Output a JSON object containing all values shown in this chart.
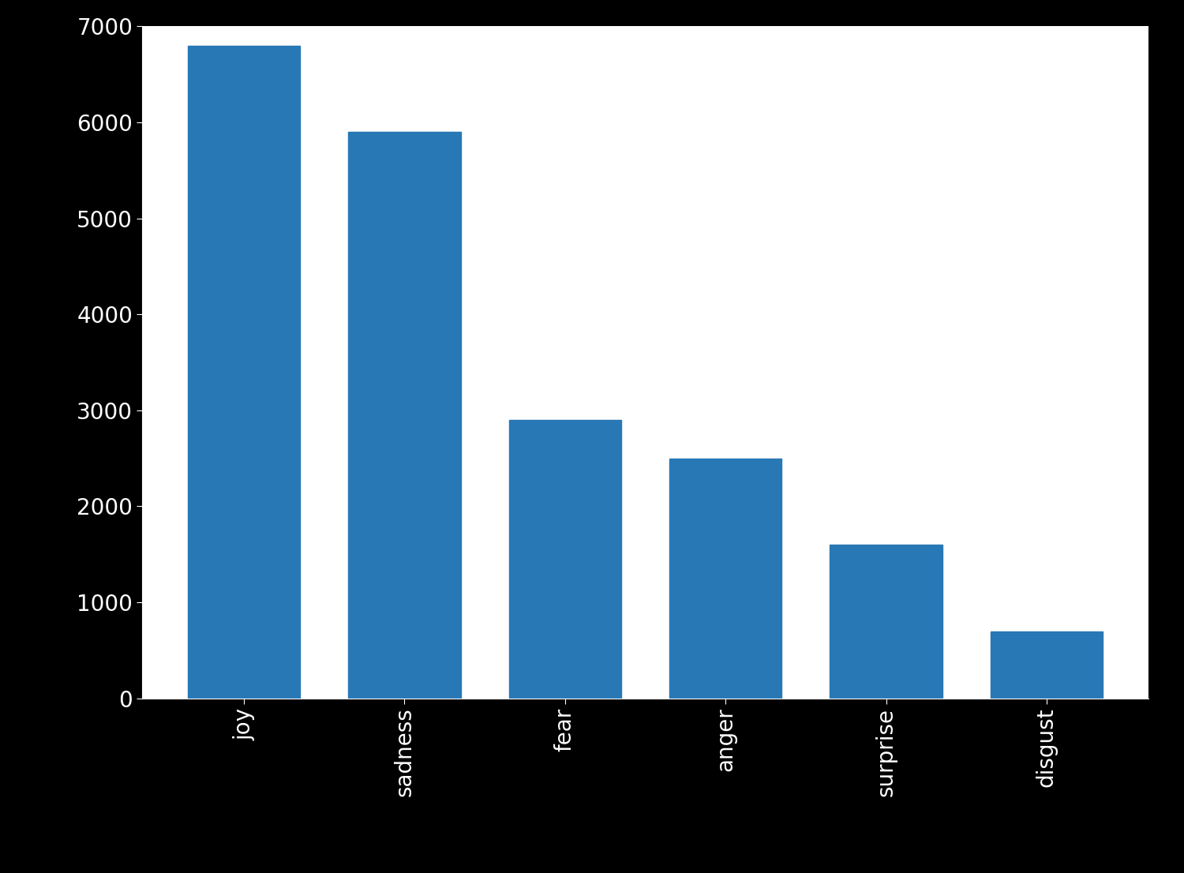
{
  "categories": [
    "joy",
    "sadness",
    "fear",
    "anger",
    "surprise",
    "disgust"
  ],
  "values": [
    6800,
    5900,
    2900,
    2500,
    1600,
    700
  ],
  "bar_color": "#2878b5",
  "ylim": [
    0,
    7000
  ],
  "yticks": [
    0,
    1000,
    2000,
    3000,
    4000,
    5000,
    6000,
    7000
  ],
  "plot_background": "#ffffff",
  "figure_facecolor": "#000000",
  "tick_label_fontsize": 20,
  "xlabel_rotation": 90,
  "bar_width": 0.7
}
